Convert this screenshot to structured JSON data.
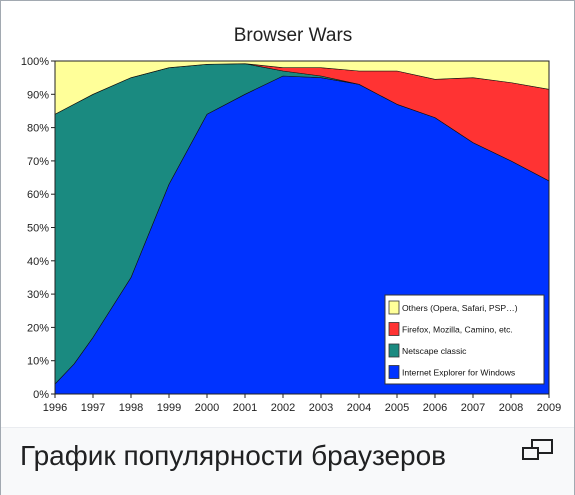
{
  "caption": "График популярности браузеров",
  "chart_data": {
    "type": "area",
    "stacked": true,
    "title": "Browser Wars",
    "xlabel": "",
    "ylabel": "",
    "x": [
      1996,
      1996.5,
      1997,
      1998,
      1999,
      2000,
      2001,
      2002,
      2003,
      2004,
      2005,
      2006,
      2007,
      2008,
      2009
    ],
    "x_ticks": [
      "1996",
      "1997",
      "1998",
      "1999",
      "2000",
      "2001",
      "2002",
      "2003",
      "2004",
      "2005",
      "2006",
      "2007",
      "2008",
      "2009"
    ],
    "y_ticks": [
      "0%",
      "10%",
      "20%",
      "30%",
      "40%",
      "50%",
      "60%",
      "70%",
      "80%",
      "90%",
      "100%"
    ],
    "ylim": [
      0,
      100
    ],
    "grid": false,
    "legend_position": "bottom-right",
    "series": [
      {
        "name": "Internet Explorer for Windows",
        "color": "#0033ff",
        "values": [
          3,
          9,
          17,
          35,
          63,
          84,
          90,
          95.5,
          95,
          93,
          87,
          83,
          75.5,
          70,
          64
        ]
      },
      {
        "name": "Netscape classic",
        "color": "#1a8a80",
        "values": [
          81,
          78,
          73,
          60,
          35,
          15,
          9.2,
          1.5,
          0.5,
          0,
          0,
          0,
          0,
          0,
          0
        ]
      },
      {
        "name": "Firefox, Mozilla, Camino, etc.",
        "color": "#ff3333",
        "values": [
          0,
          0,
          0,
          0,
          0,
          0,
          0,
          1,
          2.5,
          4,
          10,
          11.5,
          19.5,
          23.5,
          27.5
        ]
      },
      {
        "name": "Others (Opera, Safari, PSP…)",
        "color": "#ffff99",
        "values": [
          16,
          13,
          10,
          5,
          2,
          1,
          0.8,
          2,
          2,
          3,
          3,
          5.5,
          5,
          6.5,
          8.5
        ]
      }
    ]
  }
}
